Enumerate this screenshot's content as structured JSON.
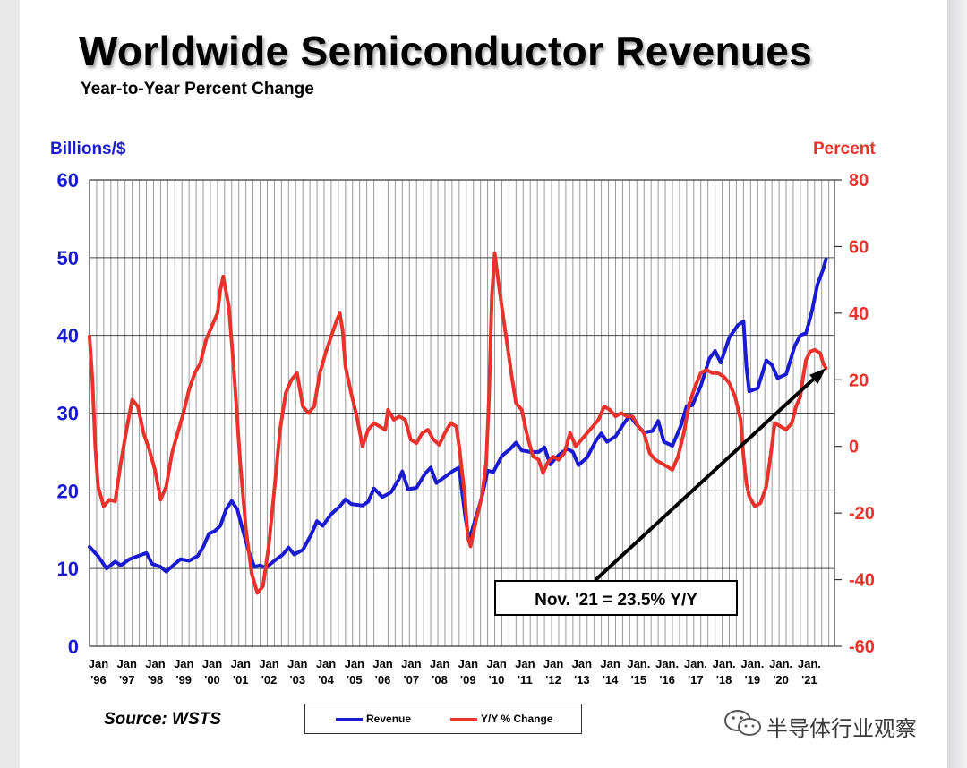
{
  "title": "Worldwide Semiconductor Revenues",
  "subtitle": "Year-to-Year Percent Change",
  "source": "Source: WSTS",
  "watermark": "半导体行业观察",
  "annotation": "Nov. '21 = 23.5% Y/Y",
  "colors": {
    "revenue": "#1a1ad0",
    "yoy": "#e8322b",
    "grid": "#9a9a9a",
    "background": "#ffffff"
  },
  "chart_data": {
    "type": "line",
    "title": "Worldwide Semiconductor Revenues",
    "subtitle": "Year-to-Year Percent Change",
    "y_left": {
      "label": "Billions/$",
      "range": [
        0,
        60
      ],
      "ticks": [
        "0",
        "10",
        "20",
        "30",
        "40",
        "50",
        "60"
      ]
    },
    "y_right": {
      "label": "Percent",
      "range": [
        -60,
        80
      ],
      "ticks": [
        "-60",
        "-40",
        "-20",
        "0",
        "20",
        "40",
        "60",
        "80"
      ]
    },
    "x_ticks": [
      {
        "top": "Jan",
        "bottom": "'96"
      },
      {
        "top": "Jan",
        "bottom": "'97"
      },
      {
        "top": "Jan",
        "bottom": "'98"
      },
      {
        "top": "Jan",
        "bottom": "'99"
      },
      {
        "top": "Jan",
        "bottom": "'00"
      },
      {
        "top": "Jan",
        "bottom": "'01"
      },
      {
        "top": "Jan",
        "bottom": "'02"
      },
      {
        "top": "Jan",
        "bottom": "'03"
      },
      {
        "top": "Jan",
        "bottom": "'04"
      },
      {
        "top": "Jan",
        "bottom": "'05"
      },
      {
        "top": "Jan",
        "bottom": "'06"
      },
      {
        "top": "Jan",
        "bottom": "'07"
      },
      {
        "top": "Jan",
        "bottom": "'08"
      },
      {
        "top": "Jan",
        "bottom": "'09"
      },
      {
        "top": "Jan",
        "bottom": "'10"
      },
      {
        "top": "Jan",
        "bottom": "'11"
      },
      {
        "top": "Jan",
        "bottom": "'12"
      },
      {
        "top": "Jan",
        "bottom": "'13"
      },
      {
        "top": "Jan",
        "bottom": "'14"
      },
      {
        "top": "Jan.",
        "bottom": "'15"
      },
      {
        "top": "Jan.",
        "bottom": "'16"
      },
      {
        "top": "Jan.",
        "bottom": "'17"
      },
      {
        "top": "Jan.",
        "bottom": "'18"
      },
      {
        "top": "Jan.",
        "bottom": "'19"
      },
      {
        "top": "Jan.",
        "bottom": "'20"
      },
      {
        "top": "Jan.",
        "bottom": "'21"
      }
    ],
    "grid": true,
    "legend_position": "bottom-center",
    "series": [
      {
        "name": "Revenue",
        "axis": "left",
        "color": "#1a1ad0",
        "points": [
          [
            1996.0,
            12.8
          ],
          [
            1996.3,
            11.6
          ],
          [
            1996.6,
            10.0
          ],
          [
            1996.9,
            10.9
          ],
          [
            1997.1,
            10.4
          ],
          [
            1997.4,
            11.2
          ],
          [
            1997.7,
            11.6
          ],
          [
            1998.0,
            12.0
          ],
          [
            1998.2,
            10.6
          ],
          [
            1998.5,
            10.2
          ],
          [
            1998.7,
            9.6
          ],
          [
            1999.0,
            10.6
          ],
          [
            1999.2,
            11.2
          ],
          [
            1999.5,
            11.0
          ],
          [
            1999.8,
            11.6
          ],
          [
            2000.0,
            12.8
          ],
          [
            2000.2,
            14.5
          ],
          [
            2000.4,
            14.8
          ],
          [
            2000.6,
            15.5
          ],
          [
            2000.8,
            17.6
          ],
          [
            2001.0,
            18.7
          ],
          [
            2001.2,
            17.6
          ],
          [
            2001.4,
            14.8
          ],
          [
            2001.6,
            12.2
          ],
          [
            2001.8,
            10.2
          ],
          [
            2002.0,
            10.4
          ],
          [
            2002.2,
            10.1
          ],
          [
            2002.5,
            11.0
          ],
          [
            2002.8,
            11.8
          ],
          [
            2003.0,
            12.7
          ],
          [
            2003.2,
            11.8
          ],
          [
            2003.5,
            12.4
          ],
          [
            2003.8,
            14.4
          ],
          [
            2004.0,
            16.1
          ],
          [
            2004.2,
            15.5
          ],
          [
            2004.5,
            17.0
          ],
          [
            2004.8,
            18.0
          ],
          [
            2005.0,
            18.9
          ],
          [
            2005.2,
            18.3
          ],
          [
            2005.6,
            18.1
          ],
          [
            2005.8,
            18.6
          ],
          [
            2006.0,
            20.3
          ],
          [
            2006.3,
            19.2
          ],
          [
            2006.6,
            19.8
          ],
          [
            2006.9,
            21.6
          ],
          [
            2007.0,
            22.5
          ],
          [
            2007.2,
            20.2
          ],
          [
            2007.5,
            20.4
          ],
          [
            2007.8,
            22.2
          ],
          [
            2008.0,
            23.0
          ],
          [
            2008.2,
            21.0
          ],
          [
            2008.5,
            21.8
          ],
          [
            2008.8,
            22.6
          ],
          [
            2009.0,
            23.0
          ],
          [
            2009.2,
            17.0
          ],
          [
            2009.35,
            13.6
          ],
          [
            2009.5,
            15.5
          ],
          [
            2009.8,
            19.2
          ],
          [
            2010.0,
            22.6
          ],
          [
            2010.2,
            22.4
          ],
          [
            2010.5,
            24.5
          ],
          [
            2010.8,
            25.4
          ],
          [
            2011.0,
            26.2
          ],
          [
            2011.2,
            25.2
          ],
          [
            2011.5,
            25.0
          ],
          [
            2011.8,
            25.0
          ],
          [
            2012.0,
            25.6
          ],
          [
            2012.2,
            23.4
          ],
          [
            2012.5,
            24.6
          ],
          [
            2012.8,
            25.4
          ],
          [
            2013.0,
            25.0
          ],
          [
            2013.2,
            23.3
          ],
          [
            2013.5,
            24.3
          ],
          [
            2013.8,
            26.4
          ],
          [
            2014.0,
            27.4
          ],
          [
            2014.2,
            26.3
          ],
          [
            2014.5,
            27.0
          ],
          [
            2014.8,
            28.7
          ],
          [
            2015.0,
            29.7
          ],
          [
            2015.2,
            28.7
          ],
          [
            2015.5,
            27.5
          ],
          [
            2015.8,
            27.7
          ],
          [
            2016.0,
            29.0
          ],
          [
            2016.2,
            26.3
          ],
          [
            2016.5,
            25.8
          ],
          [
            2016.8,
            28.4
          ],
          [
            2017.0,
            30.9
          ],
          [
            2017.2,
            31.0
          ],
          [
            2017.5,
            33.5
          ],
          [
            2017.8,
            37.0
          ],
          [
            2018.0,
            38.0
          ],
          [
            2018.2,
            36.5
          ],
          [
            2018.5,
            39.7
          ],
          [
            2018.8,
            41.3
          ],
          [
            2019.0,
            41.8
          ],
          [
            2019.1,
            36.0
          ],
          [
            2019.2,
            32.8
          ],
          [
            2019.5,
            33.2
          ],
          [
            2019.8,
            36.8
          ],
          [
            2020.0,
            36.2
          ],
          [
            2020.2,
            34.5
          ],
          [
            2020.5,
            35.0
          ],
          [
            2020.8,
            38.6
          ],
          [
            2021.0,
            40.0
          ],
          [
            2021.2,
            40.3
          ],
          [
            2021.4,
            43.0
          ],
          [
            2021.6,
            46.5
          ],
          [
            2021.8,
            48.5
          ],
          [
            2021.9,
            49.8
          ]
        ]
      },
      {
        "name": "Y/Y % Change",
        "axis": "right",
        "color": "#e8322b",
        "points": [
          [
            1996.0,
            33.0
          ],
          [
            1996.1,
            20.0
          ],
          [
            1996.2,
            0.0
          ],
          [
            1996.3,
            -12.0
          ],
          [
            1996.5,
            -18.0
          ],
          [
            1996.7,
            -16.0
          ],
          [
            1996.9,
            -16.5
          ],
          [
            1997.1,
            -5.0
          ],
          [
            1997.3,
            5.0
          ],
          [
            1997.5,
            14.0
          ],
          [
            1997.7,
            12.0
          ],
          [
            1997.9,
            4.0
          ],
          [
            1998.1,
            -1.0
          ],
          [
            1998.3,
            -7.0
          ],
          [
            1998.5,
            -16.0
          ],
          [
            1998.7,
            -12.0
          ],
          [
            1998.9,
            -2.0
          ],
          [
            1999.1,
            4.0
          ],
          [
            1999.3,
            10.0
          ],
          [
            1999.5,
            17.0
          ],
          [
            1999.7,
            22.0
          ],
          [
            1999.9,
            25.0
          ],
          [
            2000.1,
            32.0
          ],
          [
            2000.3,
            36.0
          ],
          [
            2000.5,
            40.0
          ],
          [
            2000.6,
            47.0
          ],
          [
            2000.7,
            51.0
          ],
          [
            2000.9,
            42.0
          ],
          [
            2001.1,
            20.0
          ],
          [
            2001.3,
            -5.0
          ],
          [
            2001.5,
            -25.0
          ],
          [
            2001.7,
            -38.0
          ],
          [
            2001.9,
            -44.0
          ],
          [
            2002.1,
            -42.0
          ],
          [
            2002.3,
            -30.0
          ],
          [
            2002.5,
            -13.0
          ],
          [
            2002.7,
            5.0
          ],
          [
            2002.9,
            16.0
          ],
          [
            2003.1,
            20.0
          ],
          [
            2003.3,
            22.0
          ],
          [
            2003.5,
            12.0
          ],
          [
            2003.7,
            10.0
          ],
          [
            2003.9,
            12.0
          ],
          [
            2004.1,
            22.0
          ],
          [
            2004.3,
            28.0
          ],
          [
            2004.5,
            33.0
          ],
          [
            2004.7,
            38.0
          ],
          [
            2004.8,
            40.0
          ],
          [
            2004.9,
            35.0
          ],
          [
            2005.0,
            24.0
          ],
          [
            2005.2,
            16.0
          ],
          [
            2005.4,
            9.0
          ],
          [
            2005.6,
            0.0
          ],
          [
            2005.8,
            5.0
          ],
          [
            2006.0,
            7.0
          ],
          [
            2006.2,
            6.0
          ],
          [
            2006.4,
            5.0
          ],
          [
            2006.5,
            11.0
          ],
          [
            2006.7,
            8.0
          ],
          [
            2006.9,
            9.0
          ],
          [
            2007.1,
            8.0
          ],
          [
            2007.3,
            2.0
          ],
          [
            2007.5,
            1.0
          ],
          [
            2007.7,
            4.0
          ],
          [
            2007.9,
            5.0
          ],
          [
            2008.1,
            2.0
          ],
          [
            2008.3,
            0.5
          ],
          [
            2008.5,
            4.0
          ],
          [
            2008.7,
            7.0
          ],
          [
            2008.9,
            6.0
          ],
          [
            2009.0,
            0.0
          ],
          [
            2009.2,
            -15.0
          ],
          [
            2009.3,
            -27.0
          ],
          [
            2009.4,
            -30.0
          ],
          [
            2009.6,
            -22.0
          ],
          [
            2009.8,
            -15.0
          ],
          [
            2009.95,
            -5.0
          ],
          [
            2010.05,
            15.0
          ],
          [
            2010.15,
            45.0
          ],
          [
            2010.25,
            58.0
          ],
          [
            2010.4,
            48.0
          ],
          [
            2010.55,
            39.0
          ],
          [
            2010.7,
            30.0
          ],
          [
            2010.85,
            21.0
          ],
          [
            2011.0,
            13.0
          ],
          [
            2011.2,
            11.0
          ],
          [
            2011.4,
            3.0
          ],
          [
            2011.6,
            -3.0
          ],
          [
            2011.8,
            -4.0
          ],
          [
            2011.95,
            -8.0
          ],
          [
            2012.1,
            -5.0
          ],
          [
            2012.3,
            -3.0
          ],
          [
            2012.5,
            -4.0
          ],
          [
            2012.7,
            -2.0
          ],
          [
            2012.9,
            4.0
          ],
          [
            2013.1,
            0.0
          ],
          [
            2013.3,
            2.0
          ],
          [
            2013.5,
            4.0
          ],
          [
            2013.7,
            6.0
          ],
          [
            2013.9,
            8.0
          ],
          [
            2014.1,
            12.0
          ],
          [
            2014.3,
            11.0
          ],
          [
            2014.5,
            9.0
          ],
          [
            2014.7,
            10.0
          ],
          [
            2014.9,
            9.0
          ],
          [
            2015.1,
            9.0
          ],
          [
            2015.3,
            6.0
          ],
          [
            2015.5,
            4.0
          ],
          [
            2015.7,
            -2.0
          ],
          [
            2015.9,
            -4.0
          ],
          [
            2016.1,
            -5.0
          ],
          [
            2016.3,
            -6.0
          ],
          [
            2016.5,
            -7.0
          ],
          [
            2016.7,
            -3.0
          ],
          [
            2016.9,
            4.0
          ],
          [
            2017.1,
            13.0
          ],
          [
            2017.3,
            18.0
          ],
          [
            2017.5,
            22.0
          ],
          [
            2017.7,
            23.0
          ],
          [
            2017.9,
            22.0
          ],
          [
            2018.1,
            22.0
          ],
          [
            2018.3,
            21.0
          ],
          [
            2018.5,
            19.0
          ],
          [
            2018.7,
            15.0
          ],
          [
            2018.9,
            8.0
          ],
          [
            2019.0,
            -3.0
          ],
          [
            2019.1,
            -11.0
          ],
          [
            2019.2,
            -15.0
          ],
          [
            2019.4,
            -18.0
          ],
          [
            2019.6,
            -17.0
          ],
          [
            2019.8,
            -12.0
          ],
          [
            2019.95,
            -3.0
          ],
          [
            2020.1,
            7.0
          ],
          [
            2020.3,
            6.0
          ],
          [
            2020.5,
            5.0
          ],
          [
            2020.7,
            7.0
          ],
          [
            2020.85,
            12.0
          ],
          [
            2021.0,
            15.0
          ],
          [
            2021.1,
            21.0
          ],
          [
            2021.2,
            26.0
          ],
          [
            2021.35,
            28.5
          ],
          [
            2021.5,
            29.0
          ],
          [
            2021.7,
            28.0
          ],
          [
            2021.8,
            25.0
          ],
          [
            2021.9,
            23.5
          ]
        ]
      }
    ],
    "annotation": {
      "text": "Nov. '21 = 23.5% Y/Y",
      "points_to": [
        2021.9,
        23.5
      ]
    }
  }
}
